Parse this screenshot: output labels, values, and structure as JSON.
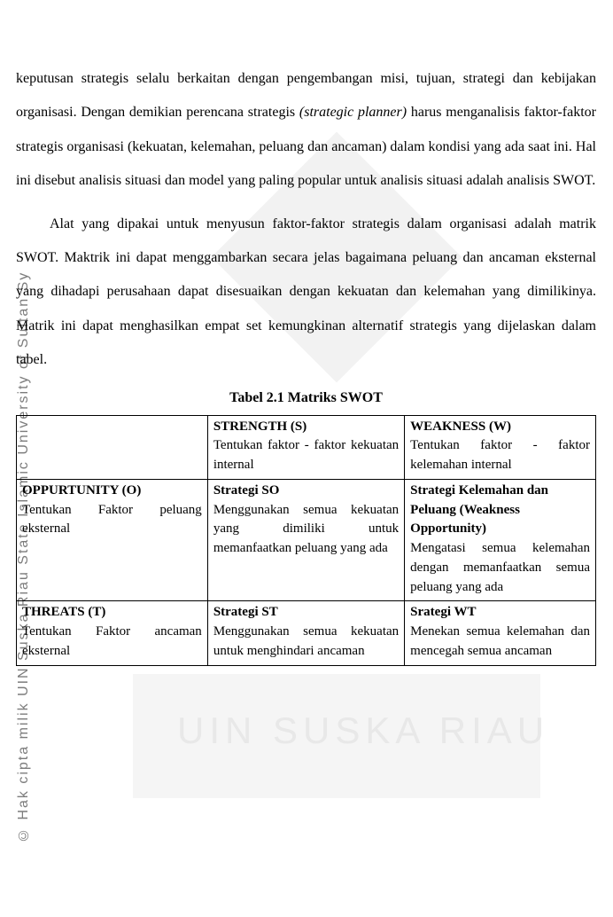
{
  "watermark": {
    "bottom_text": "UIN SUSKA RIAU",
    "diamond_color": "#f2f2f2",
    "band_color": "#f5f5f5",
    "text_color": "#e8e8e8"
  },
  "vstrip": {
    "text": "© Hak cipta milik UIN Suska Riau        State Islamic University of Sultan Sy",
    "color": "#7c7c7c"
  },
  "paragraphs": {
    "p1_a": "keputusan strategis selalu berkaitan dengan pengembangan misi, tujuan, strategi dan kebijakan organisasi. Dengan demikian perencana strategis ",
    "p1_i1": "(strategic planner)",
    "p1_b": " harus menganalisis faktor-faktor strategis organisasi (kekuatan, kelemahan, peluang dan ancaman) dalam kondisi yang ada saat ini. Hal ini disebut analisis situasi dan model yang paling popular untuk analisis situasi adalah analisis SWOT.",
    "p2": "Alat yang dipakai untuk menyusun faktor-faktor strategis dalam organisasi adalah matrik SWOT. Maktrik ini dapat menggambarkan secara jelas bagaimana peluang dan ancaman eksternal yang dihadapi perusahaan dapat disesuaikan dengan kekuatan dan kelemahan yang dimilikinya. Matrik ini dapat menghasilkan empat set kemungkinan alternatif strategis yang dijelaskan dalam tabel."
  },
  "table": {
    "title": "Tabel 2.1 Matriks SWOT",
    "columns": [
      "",
      "S",
      "W"
    ],
    "header_row": {
      "blank": "",
      "strength_title": "STRENGTH (S)",
      "strength_body": "Tentukan faktor - faktor kekuatan internal",
      "weakness_title": "WEAKNESS (W)",
      "weakness_body": "Tentukan faktor - faktor kelemahan internal"
    },
    "opportunity_row": {
      "left_title": "OPPURTUNITY (O)",
      "left_body": "Tentukan Faktor peluang eksternal",
      "so_title": "Strategi SO",
      "so_body": "Menggunakan semua kekuatan yang dimiliki untuk memanfaatkan peluang yang ada",
      "wo_title": "Strategi Kelemahan dan Peluang (Weakness Opportunity)",
      "wo_body": "Mengatasi semua kelemahan dengan memanfaatkan semua peluang yang ada"
    },
    "threats_row": {
      "left_title": "THREATS (T)",
      "left_body": "Tentukan Faktor ancaman eksternal",
      "st_title": "Strategi ST",
      "st_body": "Menggunakan semua kekuatan untuk menghindari ancaman",
      "wt_title": "Srategi WT",
      "wt_body": "Menekan semua kelemahan dan mencegah semua ancaman"
    }
  }
}
